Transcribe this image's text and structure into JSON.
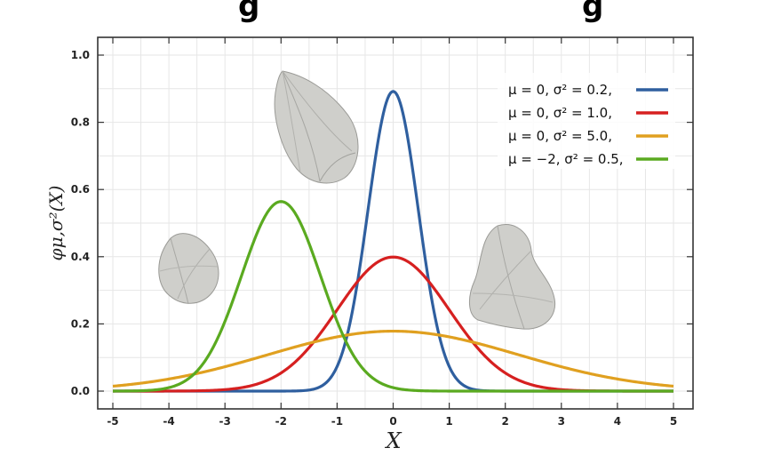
{
  "title_fragment_left": "g",
  "title_fragment_right": "g",
  "chart_data": {
    "type": "line",
    "xlabel": "X",
    "ylabel": "φμ,σ²(X)",
    "xlim": [
      -5,
      5
    ],
    "ylim": [
      0,
      1.0
    ],
    "x_ticks": [
      "-5",
      "-4",
      "-3",
      "-2",
      "-1",
      "0",
      "1",
      "2",
      "3",
      "4",
      "5"
    ],
    "y_ticks": [
      "0.0",
      "0.2",
      "0.4",
      "0.6",
      "0.8",
      "1.0"
    ],
    "grid": true,
    "legend_position": "top-right",
    "series": [
      {
        "name": "μ = 0,   σ² = 0.2,",
        "mu": 0,
        "variance": 0.2,
        "color": "#2f5f9f",
        "peak": 0.892
      },
      {
        "name": "μ = 0,   σ² = 1.0,",
        "mu": 0,
        "variance": 1.0,
        "color": "#d62020",
        "peak": 0.399
      },
      {
        "name": "μ = 0,   σ² = 5.0,",
        "mu": 0,
        "variance": 5.0,
        "color": "#e0a020",
        "peak": 0.178
      },
      {
        "name": "μ = −2, σ² = 0.5,",
        "mu": -2,
        "variance": 0.5,
        "color": "#5aaa20",
        "peak": 0.564
      }
    ],
    "overlay_shapes": [
      {
        "icon": "rounded-triangle-3d-shape",
        "color": "#c8c8c4"
      },
      {
        "icon": "petal-3d-shape",
        "color": "#c8c8c4"
      },
      {
        "icon": "lobed-3d-shape",
        "color": "#c8c8c4"
      }
    ]
  }
}
